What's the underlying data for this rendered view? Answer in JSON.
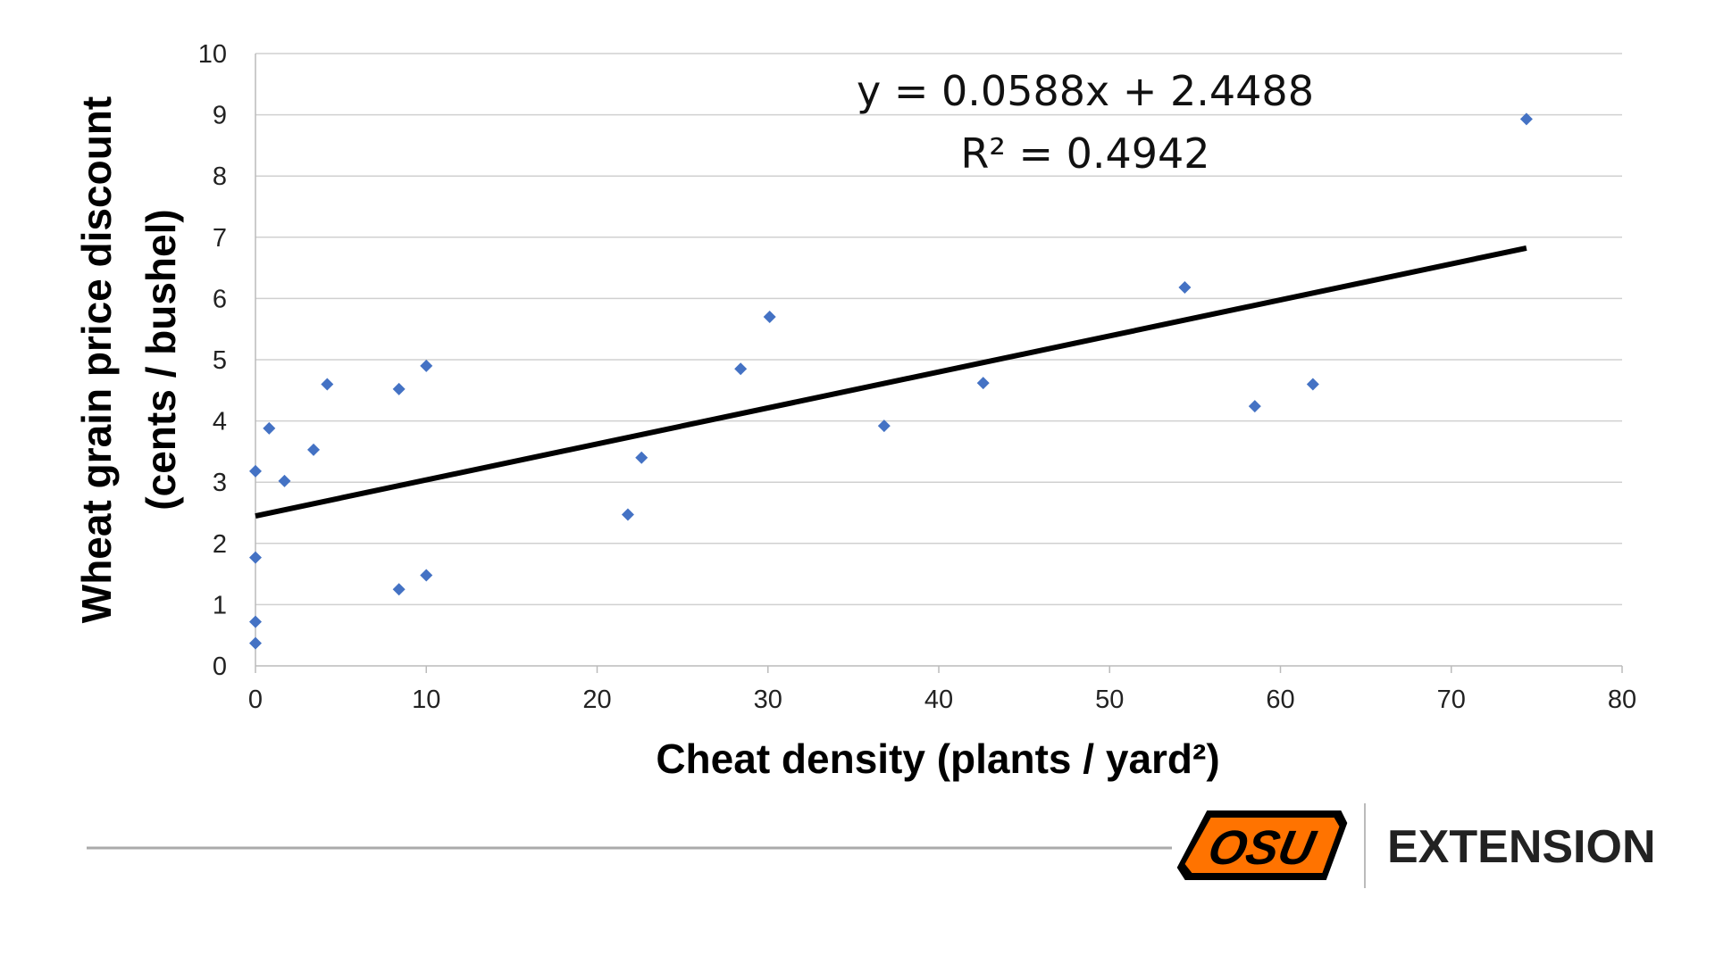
{
  "chart_data": {
    "type": "scatter",
    "xlabel": "Cheat density (plants / yard²)",
    "ylabel_line1": "Wheat grain price discount",
    "ylabel_line2": "(cents / bushel)",
    "xlim": [
      0,
      80
    ],
    "ylim": [
      0,
      10
    ],
    "xticks": [
      "0",
      "10",
      "20",
      "30",
      "40",
      "50",
      "60",
      "70",
      "80"
    ],
    "yticks": [
      "0",
      "1",
      "2",
      "3",
      "4",
      "5",
      "6",
      "7",
      "8",
      "9",
      "10"
    ],
    "grid": "horizontal",
    "marker_color": "#4472C4",
    "points": [
      [
        0,
        3.18
      ],
      [
        0,
        1.77
      ],
      [
        0,
        0.72
      ],
      [
        0,
        0.37
      ],
      [
        0.8,
        3.88
      ],
      [
        1.7,
        3.02
      ],
      [
        3.4,
        3.53
      ],
      [
        4.2,
        4.6
      ],
      [
        8.4,
        4.52
      ],
      [
        8.4,
        1.25
      ],
      [
        10,
        4.9
      ],
      [
        10,
        1.48
      ],
      [
        21.8,
        2.47
      ],
      [
        22.6,
        3.4
      ],
      [
        28.4,
        4.85
      ],
      [
        30.1,
        5.7
      ],
      [
        36.8,
        3.92
      ],
      [
        42.6,
        4.62
      ],
      [
        54.4,
        6.18
      ],
      [
        58.5,
        4.24
      ],
      [
        61.9,
        4.6
      ],
      [
        74.4,
        8.93
      ]
    ],
    "trendline": {
      "slope": 0.0588,
      "intercept": 2.4488,
      "x_range": [
        0,
        74.4
      ],
      "color": "#000000"
    },
    "annotations": [
      "y = 0.0588x + 2.4488",
      "R² = 0.4942"
    ]
  },
  "footer": {
    "logo_text": "OSU",
    "extension_label": "EXTENSION",
    "brand_color": "#FF7300"
  }
}
